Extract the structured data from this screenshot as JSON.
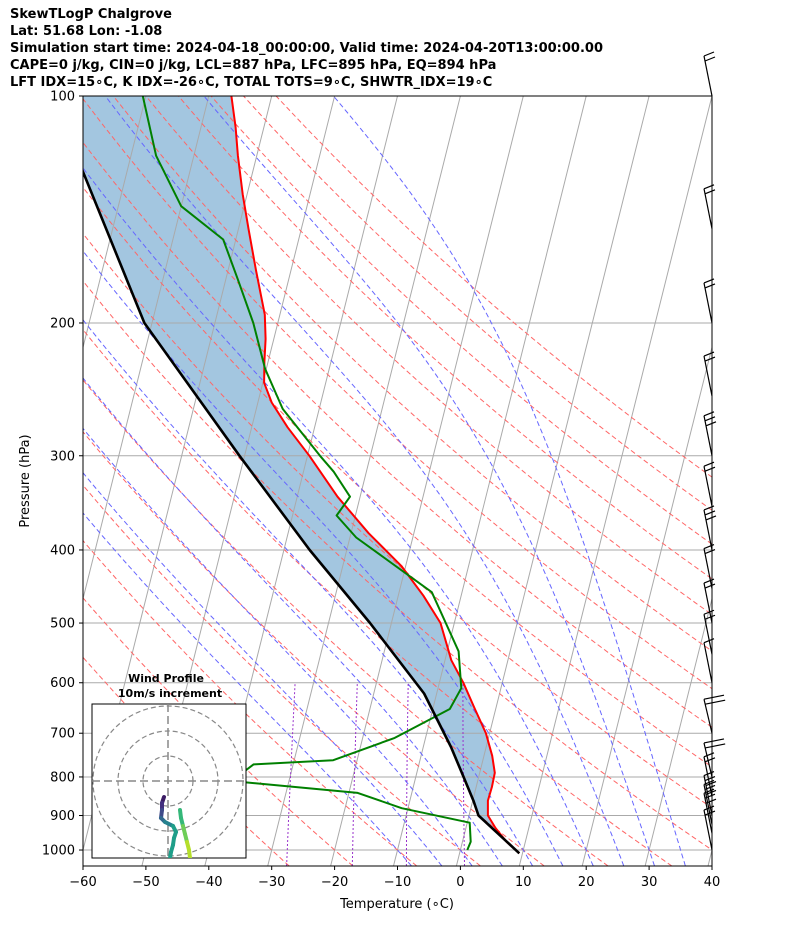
{
  "header": {
    "title": "SkewTLogP Chalgrove",
    "location": "Lat: 51.68   Lon: -1.08",
    "times": "Simulation start time: 2024-04-18_00:00:00, Valid time: 2024-04-20T13:00:00.00",
    "indices_1": "CAPE=0 j/kg, CIN=0 j/kg, LCL=887 hPa, LFC=895 hPa, EQ=894 hPa",
    "indices_2": "LFT IDX=15∘C, K IDX=-26∘C, TOTAL TOTS=9∘C, SHWTR_IDX=19∘C"
  },
  "colors": {
    "temperature": "#ff0000",
    "dewpoint": "#008000",
    "parcel": "#000000",
    "cape_fill": "#a3c6e0",
    "dry_adiabat": "#ff6666",
    "moist_adiabat": "#6666ff",
    "isotherm": "#aaaaaa",
    "mixing_ratio": "#9933cc"
  },
  "chart_data": {
    "type": "line",
    "title": "",
    "xlabel": "Temperature (∘C)",
    "ylabel": "Pressure (hPa)",
    "xlim": [
      -60,
      40
    ],
    "ylim": [
      1050,
      100
    ],
    "yscale": "log",
    "skew_deg_per_decade": 30,
    "xticks": [
      "−60",
      "−50",
      "−40",
      "−30",
      "−20",
      "−10",
      "0",
      "10",
      "20",
      "30",
      "40"
    ],
    "yticks": [
      "100",
      "200",
      "300",
      "400",
      "500",
      "600",
      "700",
      "800",
      "900",
      "1000"
    ],
    "grid": true,
    "series": [
      {
        "key": "temperature",
        "points": [
          [
            9.5,
            1010
          ],
          [
            7.0,
            975
          ],
          [
            4.7,
            935
          ],
          [
            3.0,
            900
          ],
          [
            2.4,
            860
          ],
          [
            2.5,
            825
          ],
          [
            2.4,
            790
          ],
          [
            1.3,
            750
          ],
          [
            -0.6,
            700
          ],
          [
            -3.3,
            650
          ],
          [
            -6.2,
            600
          ],
          [
            -9.0,
            560
          ],
          [
            -12.2,
            500
          ],
          [
            -16.0,
            460
          ],
          [
            -20.7,
            420
          ],
          [
            -27.2,
            380
          ],
          [
            -33.6,
            340
          ],
          [
            -39.7,
            300
          ],
          [
            -44.3,
            275
          ],
          [
            -47.8,
            255
          ],
          [
            -49.8,
            240
          ],
          [
            -50.6,
            225
          ],
          [
            -51.3,
            210
          ],
          [
            -52.4,
            195
          ],
          [
            -55.6,
            170
          ],
          [
            -58.4,
            150
          ],
          [
            -60.7,
            135
          ],
          [
            -63.0,
            120
          ],
          [
            -64.5,
            110
          ],
          [
            -66.4,
            100
          ]
        ]
      },
      {
        "key": "dewpoint",
        "points": [
          [
            1.1,
            1000
          ],
          [
            1.3,
            975
          ],
          [
            0.4,
            920
          ],
          [
            -11.0,
            880
          ],
          [
            -18.6,
            840
          ],
          [
            -39.1,
            810
          ],
          [
            -36.3,
            770
          ],
          [
            -23.8,
            760
          ],
          [
            -14.9,
            710
          ],
          [
            -7.3,
            650
          ],
          [
            -6.3,
            610
          ],
          [
            -8.2,
            545
          ],
          [
            -14.8,
            455
          ],
          [
            -29.0,
            385
          ],
          [
            -33.0,
            360
          ],
          [
            -31.6,
            340
          ],
          [
            -35.2,
            315
          ],
          [
            -38.0,
            300
          ],
          [
            -45.8,
            260
          ],
          [
            -50.2,
            230
          ],
          [
            -53.9,
            200
          ],
          [
            -58.1,
            175
          ],
          [
            -62.0,
            155
          ],
          [
            -70.0,
            140
          ],
          [
            -76.0,
            120
          ],
          [
            -80.5,
            100
          ]
        ]
      },
      {
        "key": "parcel",
        "points": [
          [
            9.5,
            1010
          ],
          [
            1.5,
            900
          ],
          [
            0.1,
            860
          ],
          [
            -2.4,
            800
          ],
          [
            -5.6,
            730
          ],
          [
            -12.0,
            620
          ],
          [
            -23.4,
            500
          ],
          [
            -35.9,
            400
          ],
          [
            -50.8,
            300
          ],
          [
            -71.2,
            200
          ],
          [
            -94.9,
            100
          ]
        ]
      }
    ],
    "wind_profile": {
      "title_line1": "Wind Profile",
      "title_line2": "10m/s increment"
    }
  }
}
